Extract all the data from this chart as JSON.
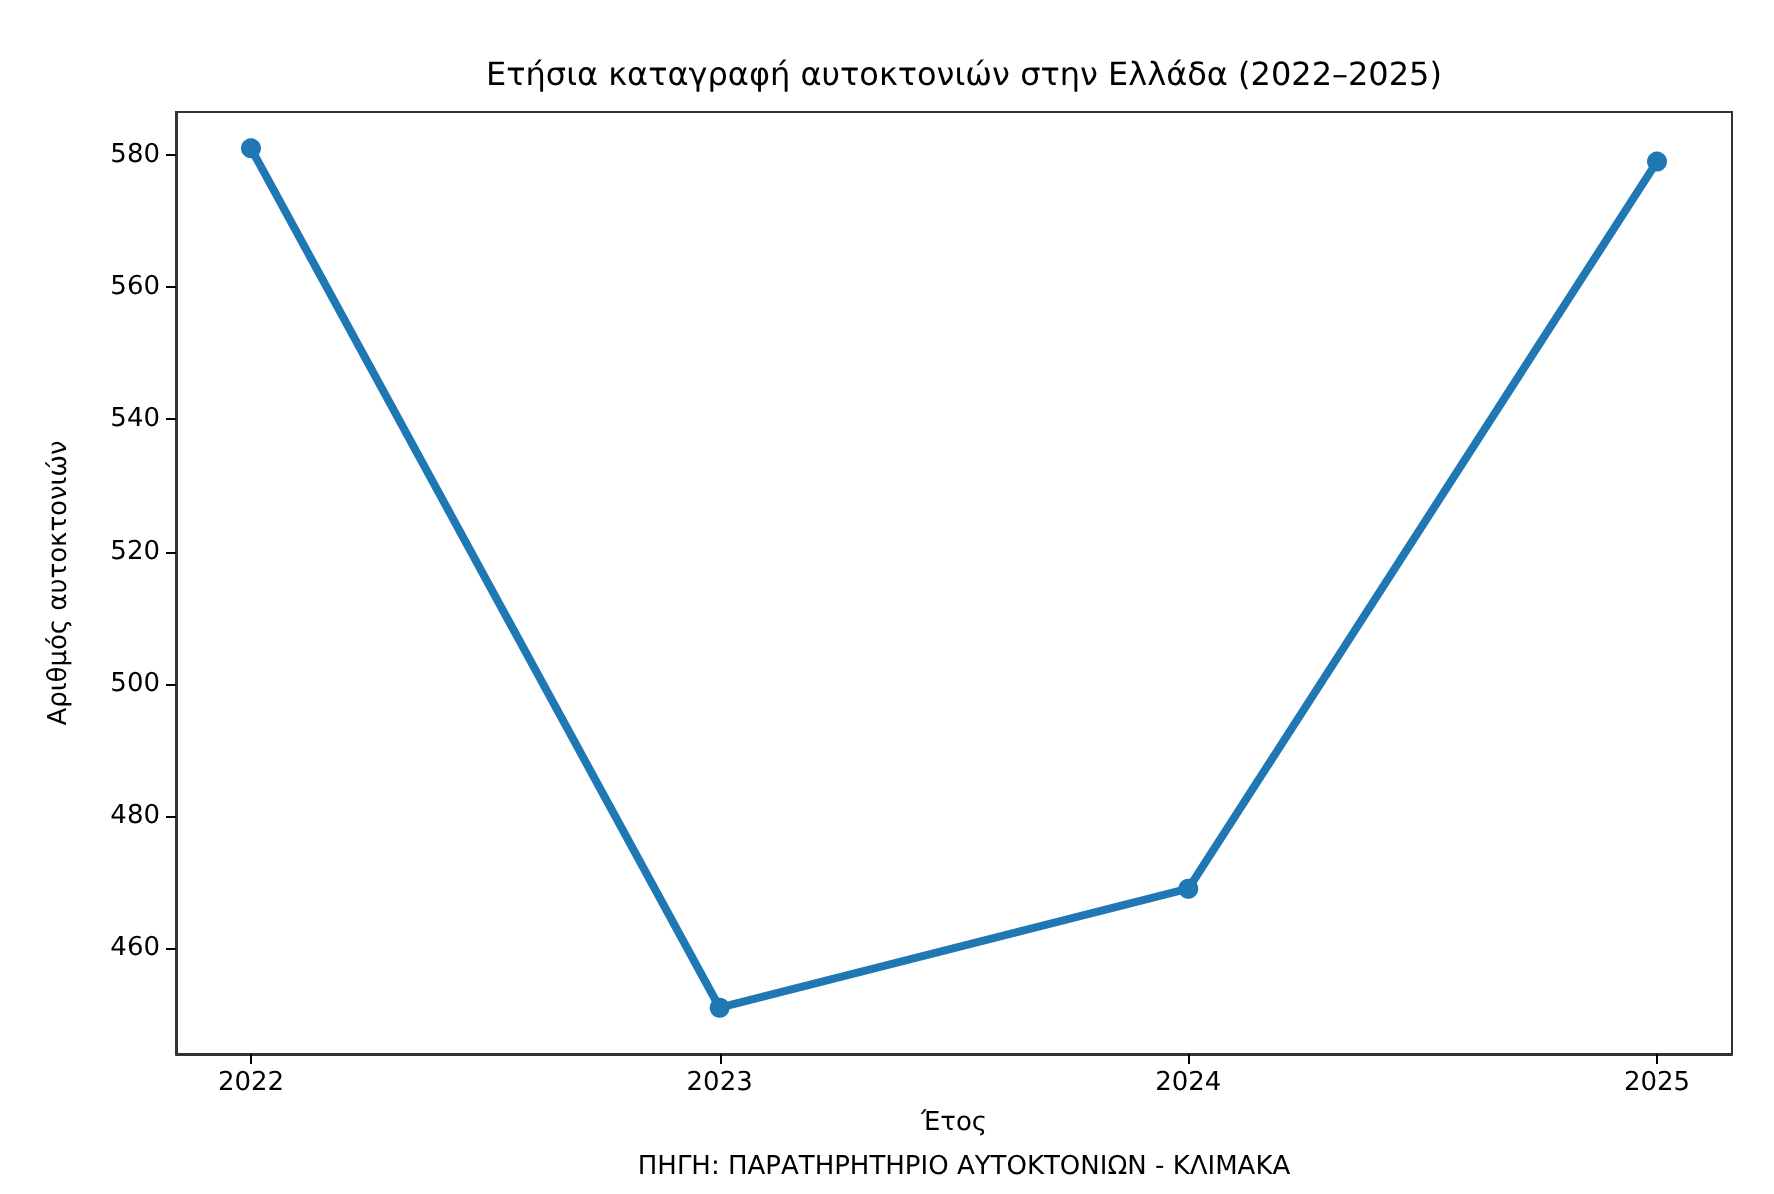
{
  "chart_data": {
    "type": "line",
    "title": "Ετήσια καταγραφή αυτοκτονιών στην Ελλάδα (2022–2025)",
    "xlabel": "Έτος",
    "ylabel": "Αριθμός αυτοκτονιών",
    "x": [
      2022,
      2023,
      2024,
      2025
    ],
    "series": [
      {
        "color": "#1f77b4",
        "values": [
          581,
          451,
          469,
          579
        ]
      }
    ],
    "xlim": [
      2021.84,
      2025.16
    ],
    "xticks": [
      2022,
      2023,
      2024,
      2025
    ],
    "ylim": [
      444,
      586.5
    ],
    "yticks": [
      460,
      480,
      500,
      520,
      540,
      560,
      580
    ],
    "marker": "circle",
    "line_style": "solid",
    "grid": false,
    "annotations": [
      "ΠΗΓΗ: ΠΑΡΑΤΗΡΗΤΗΡΙΟ ΑΥΤΟΚΤΟΝΙΩΝ - ΚΛΙΜΑΚΑ"
    ]
  }
}
